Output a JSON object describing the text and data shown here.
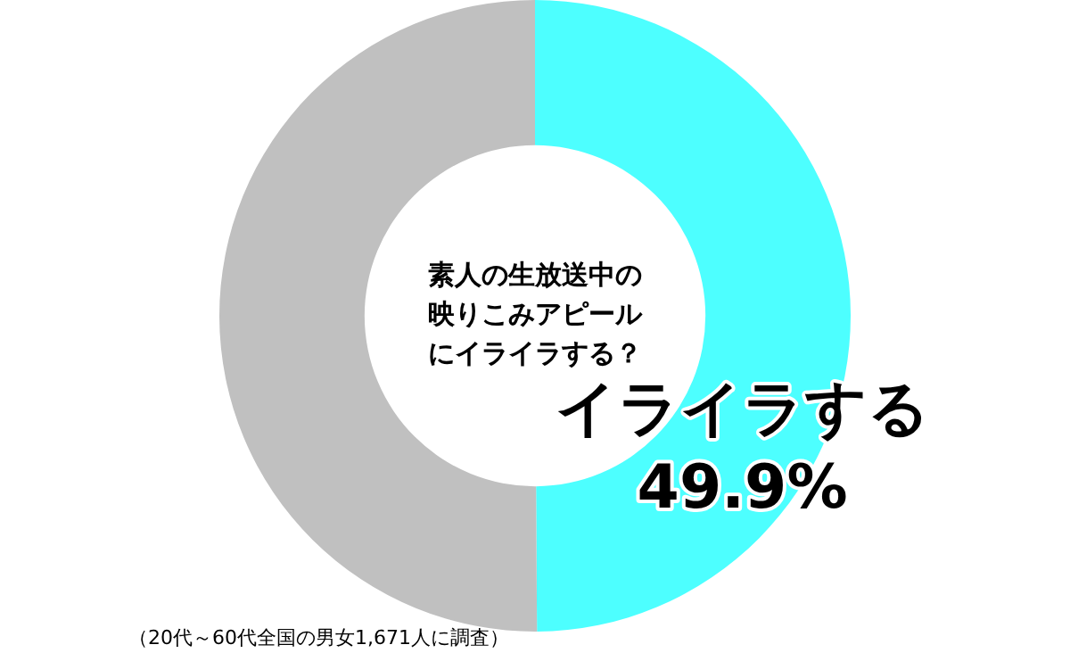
{
  "chart_data": {
    "type": "donut",
    "title": "素人の生放送中の映りこみアピールにイライラする？",
    "categories": [
      "イライラする",
      null
    ],
    "values": [
      49.9,
      50.1
    ],
    "colors": [
      "#4dffff",
      "#c0c0c0"
    ],
    "value_labels": [
      "49.9%",
      null
    ],
    "legend": false,
    "annotations": [
      "（20代～60代全国の男女1,671人に調査）"
    ]
  }
}
